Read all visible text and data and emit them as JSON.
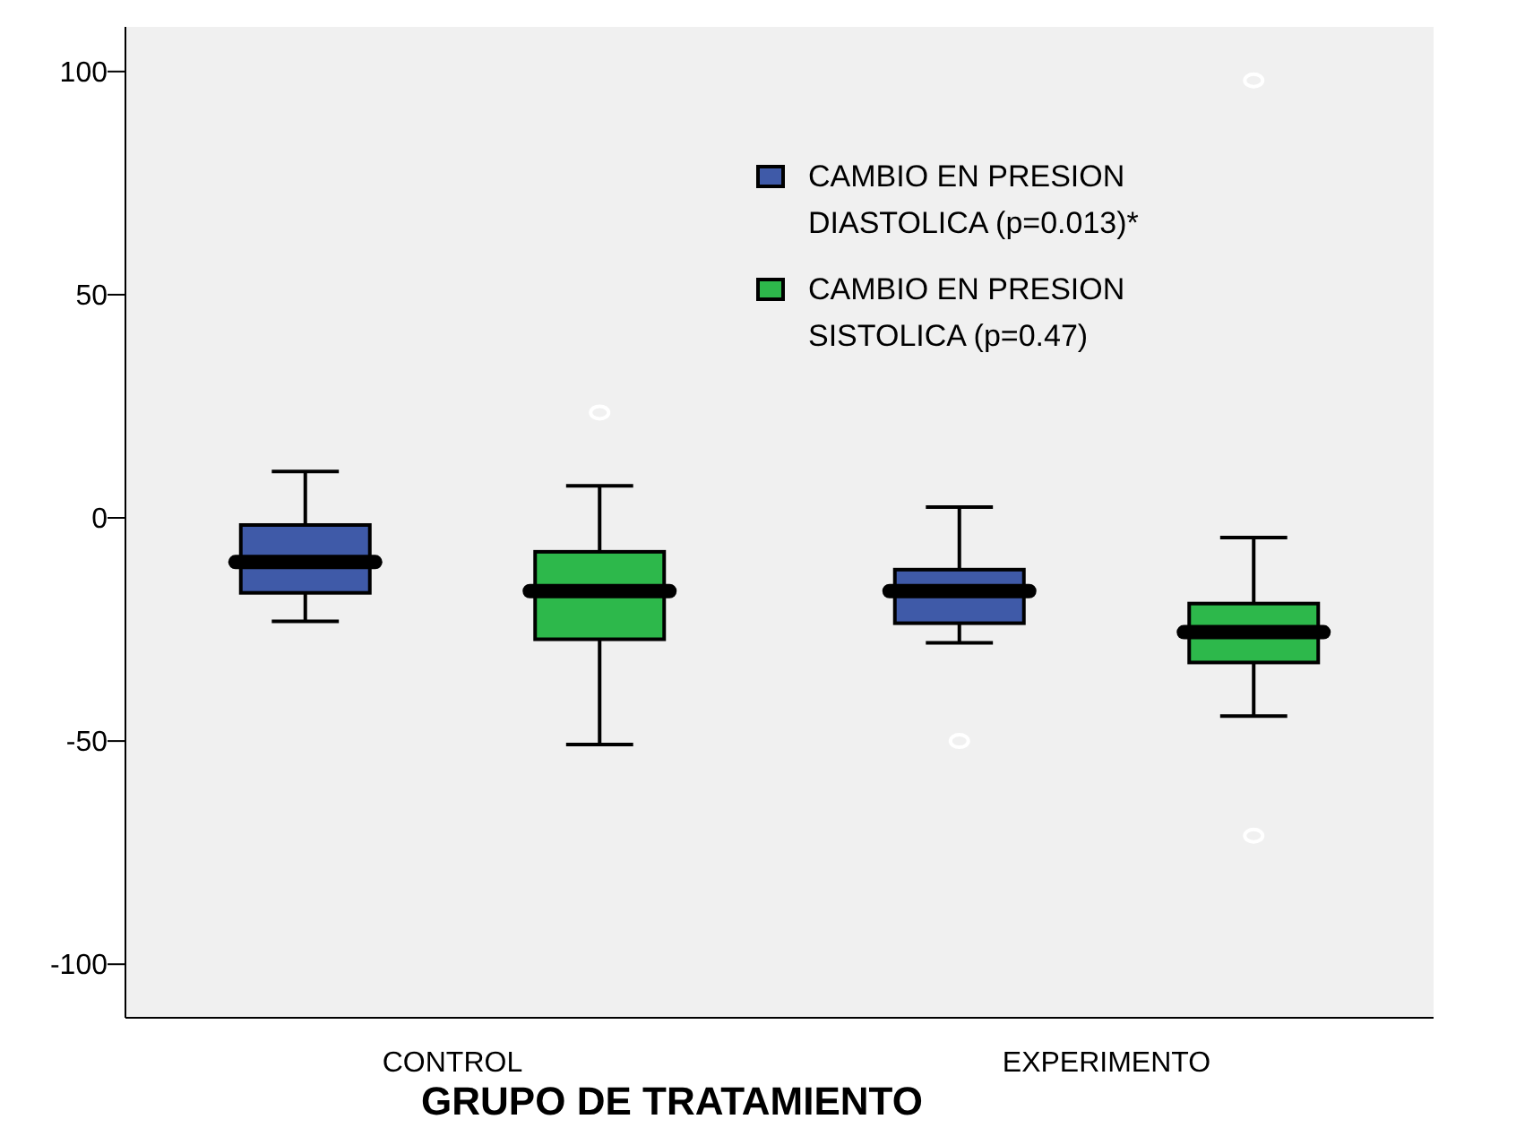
{
  "chart_data": {
    "type": "box",
    "xlabel": "GRUPO DE TRATAMIENTO",
    "categories": [
      "CONTROL",
      "EXPERIMENTO"
    ],
    "ylim": [
      -112,
      110
    ],
    "yticks": [
      -100,
      -50,
      0,
      50,
      100
    ],
    "grid": false,
    "legend": "top right",
    "series": [
      {
        "name": "CAMBIO EN PRESION DIASTOLICA (p=0.013)*",
        "color": "#3f5aa8",
        "boxes": [
          {
            "low": -23.2,
            "q1": -16.8,
            "median": -9.9,
            "q3": -1.6,
            "high": 10.4
          },
          {
            "low": -28,
            "q1": -23.6,
            "median": -16.4,
            "q3": -11.6,
            "high": 2.4,
            "outliers": [
              -50
            ]
          }
        ]
      },
      {
        "name": "CAMBIO EN PRESION SISTOLICA (p=0.47)",
        "color": "#2db84b",
        "boxes": [
          {
            "low": -50.8,
            "q1": -27.2,
            "median": -16.4,
            "q3": -7.6,
            "high": 7.2,
            "outliers": [
              23.6
            ]
          },
          {
            "low": -44.4,
            "q1": -32.4,
            "median": -25.6,
            "q3": -19.2,
            "high": -4.4,
            "outliers": [
              -71.2,
              98
            ]
          }
        ]
      }
    ]
  }
}
